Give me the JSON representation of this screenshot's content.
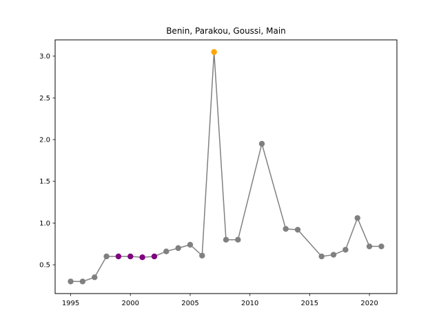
{
  "chart_data": {
    "type": "line",
    "title": "Benin, Parakou, Goussi, Main",
    "xlabel": "",
    "ylabel": "",
    "xlim": [
      1993.7,
      2022.3
    ],
    "ylim": [
      0.155,
      3.195
    ],
    "xticks": [
      1995,
      2000,
      2005,
      2010,
      2015,
      2020
    ],
    "xtick_labels": [
      "1995",
      "2000",
      "2005",
      "2010",
      "2015",
      "2020"
    ],
    "yticks": [
      0.5,
      1.0,
      1.5,
      2.0,
      2.5,
      3.0
    ],
    "ytick_labels": [
      "0.5",
      "1.0",
      "1.5",
      "2.0",
      "2.5",
      "3.0"
    ],
    "grid": false,
    "line_color": "#808080",
    "series": [
      {
        "x": [
          1995,
          1996,
          1997,
          1998,
          1999,
          2000,
          2001,
          2002,
          2003,
          2004,
          2005,
          2006,
          2007,
          2008,
          2009,
          2011,
          2013,
          2014,
          2016,
          2017,
          2018,
          2019,
          2020,
          2021
        ],
        "y": [
          0.3,
          0.3,
          0.35,
          0.6,
          0.6,
          0.6,
          0.59,
          0.6,
          0.66,
          0.7,
          0.74,
          0.61,
          3.05,
          0.8,
          0.8,
          1.95,
          0.93,
          0.92,
          0.6,
          0.62,
          0.68,
          1.06,
          0.72,
          0.72
        ],
        "colors": [
          "#808080",
          "#808080",
          "#808080",
          "#808080",
          "#800080",
          "#800080",
          "#800080",
          "#800080",
          "#808080",
          "#808080",
          "#808080",
          "#808080",
          "#ffa500",
          "#808080",
          "#808080",
          "#808080",
          "#808080",
          "#808080",
          "#808080",
          "#808080",
          "#808080",
          "#808080",
          "#808080",
          "#808080"
        ]
      }
    ]
  }
}
